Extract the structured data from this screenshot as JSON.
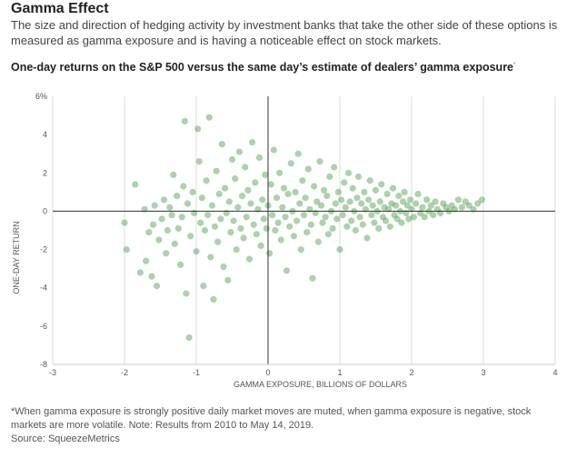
{
  "header": {
    "title": "Gamma Effect",
    "subtitle": "The size and direction of hedging activity by investment banks that take the other side of these options is measured as gamma exposure and is having a noticeable effect on stock markets."
  },
  "chart_data": {
    "type": "scatter",
    "title": "One-day returns on the S&P 500 versus the same day’s estimate of dealers’ gamma exposure",
    "title_note_marker": "*",
    "xlabel": "GAMMA EXPOSURE, BILLIONS OF DOLLARS",
    "ylabel": "ONE-DAY RETURN",
    "xlim": [
      -3,
      4
    ],
    "ylim": [
      -8,
      6
    ],
    "xticks": [
      "-3",
      "-2",
      "-1",
      "0",
      "1",
      "2",
      "3",
      "4"
    ],
    "yticks": [
      "6%",
      "4",
      "2",
      "0",
      "-2",
      "-4",
      "-6",
      "-8"
    ],
    "grid": "vertical",
    "point_color": "#4a9a46",
    "series": [
      {
        "points": [
          [
            -2.0,
            -0.6
          ],
          [
            -1.97,
            -2.0
          ],
          [
            -1.85,
            1.4
          ],
          [
            -1.78,
            -3.2
          ],
          [
            -1.72,
            0.1
          ],
          [
            -1.7,
            -2.6
          ],
          [
            -1.66,
            -1.1
          ],
          [
            -1.62,
            -3.4
          ],
          [
            -1.6,
            -0.7
          ],
          [
            -1.58,
            0.3
          ],
          [
            -1.55,
            -3.9
          ],
          [
            -1.52,
            -1.5
          ],
          [
            -1.48,
            -0.4
          ],
          [
            -1.45,
            0.6
          ],
          [
            -1.42,
            -2.2
          ],
          [
            -1.4,
            -1.0
          ],
          [
            -1.37,
            0.2
          ],
          [
            -1.34,
            -0.2
          ],
          [
            -1.32,
            1.9
          ],
          [
            -1.3,
            -1.7
          ],
          [
            -1.27,
            0.8
          ],
          [
            -1.25,
            -0.9
          ],
          [
            -1.22,
            -2.8
          ],
          [
            -1.2,
            -0.3
          ],
          [
            -1.18,
            1.3
          ],
          [
            -1.16,
            4.7
          ],
          [
            -1.14,
            -4.3
          ],
          [
            -1.12,
            0.4
          ],
          [
            -1.1,
            -6.6
          ],
          [
            -1.08,
            -1.3
          ],
          [
            -1.05,
            1.0
          ],
          [
            -1.03,
            -0.1
          ],
          [
            -1.0,
            -2.1
          ],
          [
            -0.98,
            4.3
          ],
          [
            -0.96,
            2.6
          ],
          [
            -0.94,
            -0.6
          ],
          [
            -0.92,
            0.7
          ],
          [
            -0.9,
            -3.9
          ],
          [
            -0.88,
            -1.0
          ],
          [
            -0.86,
            1.6
          ],
          [
            -0.84,
            -0.2
          ],
          [
            -0.82,
            4.9
          ],
          [
            -0.8,
            -2.4
          ],
          [
            -0.78,
            0.3
          ],
          [
            -0.76,
            -4.6
          ],
          [
            -0.74,
            -0.8
          ],
          [
            -0.72,
            2.1
          ],
          [
            -0.7,
            -1.6
          ],
          [
            -0.68,
            0.9
          ],
          [
            -0.66,
            -0.4
          ],
          [
            -0.64,
            3.5
          ],
          [
            -0.62,
            -2.9
          ],
          [
            -0.6,
            1.2
          ],
          [
            -0.58,
            -0.1
          ],
          [
            -0.56,
            -3.6
          ],
          [
            -0.54,
            0.5
          ],
          [
            -0.52,
            -1.1
          ],
          [
            -0.5,
            2.7
          ],
          [
            -0.48,
            -0.5
          ],
          [
            -0.46,
            1.7
          ],
          [
            -0.44,
            -2.0
          ],
          [
            -0.42,
            0.2
          ],
          [
            -0.4,
            3.1
          ],
          [
            -0.38,
            -0.9
          ],
          [
            -0.36,
            0.8
          ],
          [
            -0.34,
            -1.4
          ],
          [
            -0.32,
            2.3
          ],
          [
            -0.3,
            -0.3
          ],
          [
            -0.28,
            1.1
          ],
          [
            -0.26,
            -2.5
          ],
          [
            -0.24,
            0.4
          ],
          [
            -0.22,
            3.6
          ],
          [
            -0.2,
            -0.7
          ],
          [
            -0.18,
            1.5
          ],
          [
            -0.16,
            -1.2
          ],
          [
            -0.14,
            0.1
          ],
          [
            -0.12,
            2.8
          ],
          [
            -0.1,
            -1.8
          ],
          [
            -0.08,
            0.6
          ],
          [
            -0.06,
            -0.4
          ],
          [
            -0.04,
            1.9
          ],
          [
            -0.02,
            -0.9
          ],
          [
            0.0,
            0.3
          ],
          [
            0.02,
            -2.2
          ],
          [
            0.04,
            1.4
          ],
          [
            0.06,
            -0.2
          ],
          [
            0.08,
            3.2
          ],
          [
            0.1,
            -1.0
          ],
          [
            0.12,
            0.7
          ],
          [
            0.14,
            -0.6
          ],
          [
            0.16,
            2.0
          ],
          [
            0.18,
            -1.5
          ],
          [
            0.2,
            0.2
          ],
          [
            0.22,
            1.2
          ],
          [
            0.24,
            -0.3
          ],
          [
            0.26,
            -3.1
          ],
          [
            0.28,
            0.9
          ],
          [
            0.3,
            -0.8
          ],
          [
            0.32,
            2.5
          ],
          [
            0.34,
            0.0
          ],
          [
            0.36,
            -1.3
          ],
          [
            0.38,
            1.0
          ],
          [
            0.4,
            -0.5
          ],
          [
            0.42,
            3.0
          ],
          [
            0.44,
            0.4
          ],
          [
            0.46,
            -2.0
          ],
          [
            0.48,
            1.6
          ],
          [
            0.5,
            -0.2
          ],
          [
            0.52,
            0.7
          ],
          [
            0.54,
            -1.1
          ],
          [
            0.56,
            2.2
          ],
          [
            0.58,
            0.1
          ],
          [
            0.6,
            -0.7
          ],
          [
            0.62,
            -3.5
          ],
          [
            0.64,
            1.3
          ],
          [
            0.66,
            -0.1
          ],
          [
            0.68,
            0.5
          ],
          [
            0.7,
            -1.6
          ],
          [
            0.72,
            2.6
          ],
          [
            0.74,
            0.3
          ],
          [
            0.76,
            -0.6
          ],
          [
            0.78,
            1.1
          ],
          [
            0.8,
            -0.3
          ],
          [
            0.82,
            0.8
          ],
          [
            0.84,
            -1.2
          ],
          [
            0.86,
            1.8
          ],
          [
            0.88,
            0.0
          ],
          [
            0.9,
            -0.9
          ],
          [
            0.92,
            2.3
          ],
          [
            0.94,
            0.4
          ],
          [
            0.96,
            -0.4
          ],
          [
            0.98,
            1.0
          ],
          [
            1.0,
            -2.0
          ],
          [
            1.02,
            0.6
          ],
          [
            1.04,
            -0.2
          ],
          [
            1.06,
            1.5
          ],
          [
            1.08,
            0.2
          ],
          [
            1.1,
            -0.8
          ],
          [
            1.12,
            2.0
          ],
          [
            1.14,
            0.5
          ],
          [
            1.16,
            -0.5
          ],
          [
            1.18,
            1.2
          ],
          [
            1.2,
            0.0
          ],
          [
            1.22,
            -1.0
          ],
          [
            1.24,
            0.7
          ],
          [
            1.26,
            1.8
          ],
          [
            1.28,
            -0.3
          ],
          [
            1.3,
            0.4
          ],
          [
            1.32,
            -0.7
          ],
          [
            1.34,
            1.0
          ],
          [
            1.36,
            0.1
          ],
          [
            1.38,
            -1.4
          ],
          [
            1.4,
            0.6
          ],
          [
            1.42,
            1.6
          ],
          [
            1.44,
            -0.2
          ],
          [
            1.46,
            0.3
          ],
          [
            1.48,
            -0.6
          ],
          [
            1.5,
            1.1
          ],
          [
            1.52,
            0.0
          ],
          [
            1.54,
            -0.9
          ],
          [
            1.56,
            0.5
          ],
          [
            1.58,
            1.4
          ],
          [
            1.6,
            -0.3
          ],
          [
            1.62,
            0.2
          ],
          [
            1.64,
            -0.5
          ],
          [
            1.66,
            0.9
          ],
          [
            1.68,
            0.1
          ],
          [
            1.7,
            -0.8
          ],
          [
            1.72,
            0.4
          ],
          [
            1.74,
            1.2
          ],
          [
            1.76,
            -0.2
          ],
          [
            1.78,
            0.3
          ],
          [
            1.8,
            -0.4
          ],
          [
            1.82,
            0.8
          ],
          [
            1.84,
            0.0
          ],
          [
            1.86,
            -0.6
          ],
          [
            1.88,
            0.5
          ],
          [
            1.9,
            1.0
          ],
          [
            1.92,
            -0.1
          ],
          [
            1.94,
            0.3
          ],
          [
            1.96,
            -0.4
          ],
          [
            1.98,
            0.6
          ],
          [
            2.0,
            0.1
          ],
          [
            2.03,
            -0.3
          ],
          [
            2.06,
            0.4
          ],
          [
            2.09,
            0.9
          ],
          [
            2.12,
            -0.1
          ],
          [
            2.15,
            0.2
          ],
          [
            2.18,
            -0.3
          ],
          [
            2.21,
            0.6
          ],
          [
            2.24,
            0.0
          ],
          [
            2.27,
            0.3
          ],
          [
            2.3,
            -0.2
          ],
          [
            2.33,
            0.5
          ],
          [
            2.36,
            0.1
          ],
          [
            2.4,
            -0.1
          ],
          [
            2.44,
            0.4
          ],
          [
            2.48,
            0.2
          ],
          [
            2.52,
            0.0
          ],
          [
            2.56,
            0.3
          ],
          [
            2.6,
            0.1
          ],
          [
            2.65,
            0.6
          ],
          [
            2.7,
            0.2
          ],
          [
            2.75,
            0.5
          ],
          [
            2.8,
            0.3
          ],
          [
            2.86,
            0.1
          ],
          [
            2.92,
            0.4
          ],
          [
            2.98,
            0.6
          ]
        ]
      }
    ]
  },
  "footer": {
    "footnote": "*When gamma exposure is strongly positive daily market moves are muted, when gamma exposure is negative, stock markets are more volatile. Note: Results from 2010 to May 14, 2019.",
    "source": "Source: SqueezeMetrics"
  }
}
